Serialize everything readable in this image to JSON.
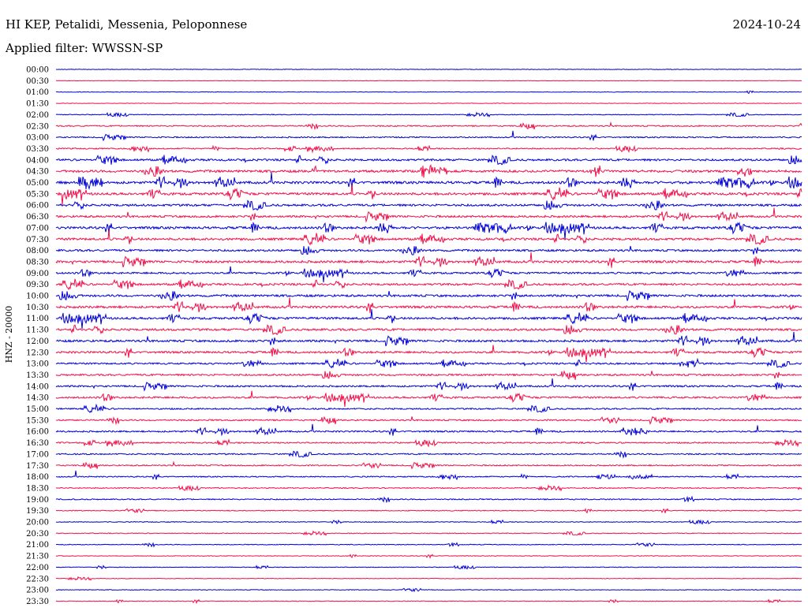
{
  "header": {
    "station": "HI KEP, Petalidi, Messenia, Peloponnese",
    "date": "2024-10-24",
    "filter": "Applied filter: WWSSN-SP"
  },
  "colors": {
    "odd_trace": "#0000d6",
    "even_trace": "#f0104a",
    "text": "#000000"
  },
  "chart_data": {
    "type": "line",
    "title": "HI KEP, Petalidi, Messenia, Peloponnese",
    "ylabel": "HNZ - 20000",
    "xlabel": "",
    "grid": false,
    "legend": "none",
    "categories": [
      "00:00",
      "00:30",
      "01:00",
      "01:30",
      "02:00",
      "02:30",
      "03:00",
      "03:30",
      "04:00",
      "04:30",
      "05:00",
      "05:30",
      "06:00",
      "06:30",
      "07:00",
      "07:30",
      "08:00",
      "08:30",
      "09:00",
      "09:30",
      "10:00",
      "10:30",
      "11:00",
      "11:30",
      "12:00",
      "12:30",
      "13:00",
      "13:30",
      "14:00",
      "14:30",
      "15:00",
      "15:30",
      "16:00",
      "16:30",
      "17:00",
      "17:30",
      "18:00",
      "18:30",
      "19:00",
      "19:30",
      "20:00",
      "20:30",
      "21:00",
      "21:30",
      "22:00",
      "22:30",
      "23:00",
      "23:30"
    ],
    "activity_levels": [
      0.05,
      0.03,
      0.06,
      0.03,
      0.15,
      0.35,
      0.35,
      0.35,
      0.7,
      0.85,
      0.9,
      0.85,
      0.75,
      0.7,
      0.85,
      0.8,
      0.7,
      0.8,
      0.6,
      0.7,
      0.75,
      0.8,
      0.75,
      0.75,
      0.75,
      0.7,
      0.55,
      0.6,
      0.55,
      0.6,
      0.45,
      0.45,
      0.5,
      0.4,
      0.4,
      0.35,
      0.3,
      0.25,
      0.3,
      0.2,
      0.15,
      0.15,
      0.15,
      0.1,
      0.1,
      0.08,
      0.1,
      0.1
    ]
  }
}
